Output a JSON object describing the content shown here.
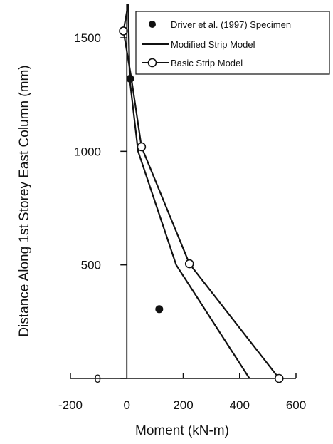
{
  "chart_data": {
    "type": "line",
    "title": "",
    "xlabel": "Moment (kN-m)",
    "ylabel": "Distance Along 1st Storey East Column (mm)",
    "xlim": [
      -200,
      600
    ],
    "ylim": [
      0,
      1650
    ],
    "xticks": [
      -200,
      0,
      200,
      400,
      600
    ],
    "yticks": [
      0,
      500,
      1000,
      1500
    ],
    "xtick_labels": [
      "-200",
      "0",
      "200",
      "400",
      "600"
    ],
    "ytick_labels": [
      "0",
      "500",
      "1000",
      "1500"
    ],
    "grid": false,
    "legend_position": "top-right",
    "series": [
      {
        "name": "Driver et al. (1997) Specimen",
        "kind": "scatter-filled",
        "x": [
          12,
          115
        ],
        "y": [
          1320,
          305
        ]
      },
      {
        "name": "Modified Strip Model",
        "kind": "line",
        "x": [
          435,
          175,
          40,
          10,
          5
        ],
        "y": [
          0,
          500,
          1000,
          1320,
          1650
        ]
      },
      {
        "name": "Basic Strip Model",
        "kind": "line-open-markers",
        "x": [
          540,
          222,
          52,
          15,
          -12,
          5
        ],
        "y": [
          0,
          505,
          1020,
          1330,
          1530,
          1650
        ],
        "marker_x": [
          540,
          222,
          52,
          -12
        ],
        "marker_y": [
          0,
          505,
          1020,
          1530
        ]
      },
      {
        "name": "",
        "kind": "vertical-line",
        "x": [
          0,
          0
        ],
        "y": [
          0,
          1650
        ]
      }
    ]
  }
}
